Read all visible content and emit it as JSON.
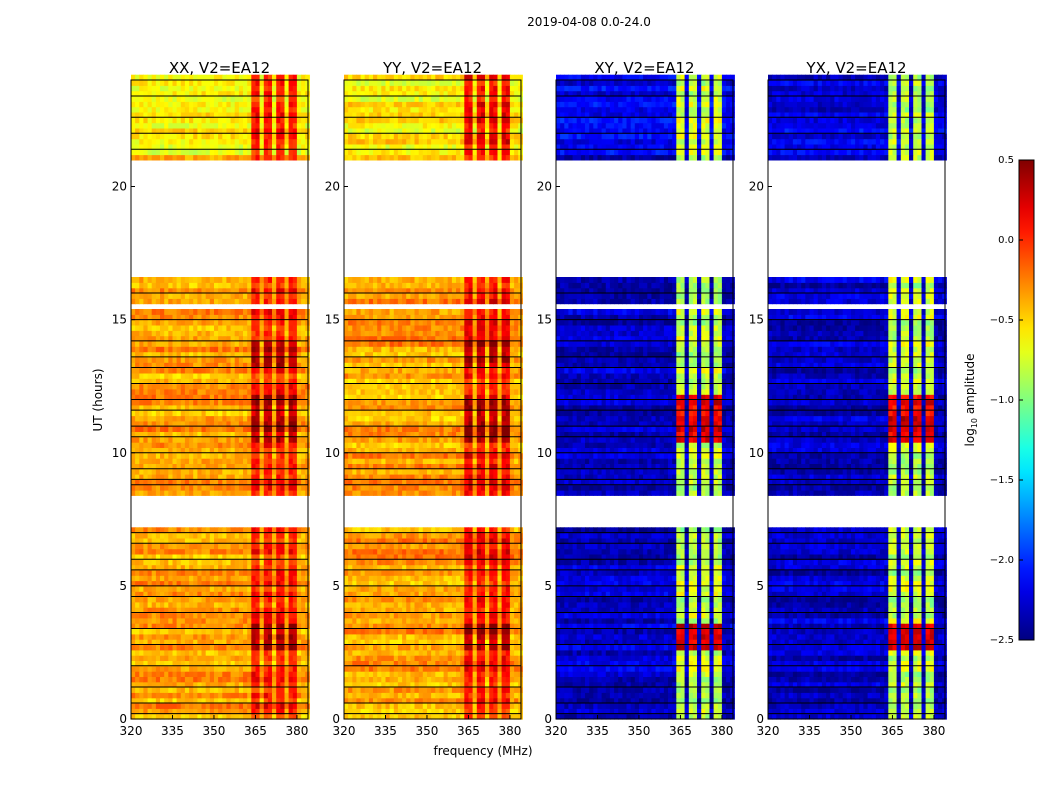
{
  "chart_data": {
    "type": "heatmap",
    "title": "2019-04-08 0.0-24.0",
    "xlabel": "frequency (MHz)",
    "ylabel": "UT (hours)",
    "xlim": [
      320,
      384
    ],
    "ylim": [
      0,
      24
    ],
    "xticks": [
      320,
      335,
      350,
      365,
      380
    ],
    "yticks": [
      0,
      5,
      10,
      15,
      20
    ],
    "colorbar": {
      "label": "log10 amplitude",
      "label_main": "log",
      "label_sub": "10",
      "label_rest": " amplitude",
      "colormap": "jet",
      "range": [
        -2.5,
        0.5
      ],
      "ticks": [
        0.5,
        0.0,
        -0.5,
        -1.0,
        -1.5,
        -2.0,
        -2.5
      ],
      "tick_labels": [
        "0.5",
        "0.0",
        "−0.5",
        "−1.0",
        "−1.5",
        "−2.0",
        "−2.5"
      ]
    },
    "time_gaps_hours": [
      [
        7.3,
        8.5
      ],
      [
        15.45,
        15.6
      ],
      [
        16.5,
        20.95
      ]
    ],
    "flagged_rows_hours": [
      0.3,
      0.6,
      1.2,
      1.9,
      2.3,
      2.9,
      3.4,
      4.1,
      4.6,
      5.1,
      5.6,
      6.1,
      6.6,
      7.0,
      8.9,
      9.4,
      9.9,
      10.5,
      11.0,
      11.5,
      12.0,
      12.6,
      13.1,
      13.6,
      14.1,
      15.0,
      16.0,
      21.3,
      22.0,
      22.6,
      23.3
    ],
    "band_MHz": [
      363,
      381
    ],
    "band_subbands_MHz": [
      [
        363,
        367
      ],
      [
        367.5,
        371.5
      ],
      [
        372,
        376
      ],
      [
        376.5,
        380.5
      ]
    ],
    "panels": [
      {
        "title": "XX, V2=EA12",
        "base_level": -0.35,
        "band_level": 0.05,
        "strong_hours": [
          [
            2.6,
            3.6
          ],
          [
            10.3,
            12.0
          ],
          [
            13.0,
            14.0
          ]
        ],
        "strong_level": 0.35,
        "upper_level": -0.6
      },
      {
        "title": "YY, V2=EA12",
        "base_level": -0.35,
        "band_level": 0.1,
        "strong_hours": [
          [
            2.6,
            3.6
          ],
          [
            10.3,
            12.0
          ],
          [
            13.0,
            14.0
          ]
        ],
        "strong_level": 0.4,
        "upper_level": -0.6
      },
      {
        "title": "XY, V2=EA12",
        "base_level": -2.3,
        "band_level": -0.8,
        "strong_hours": [
          [
            2.6,
            3.6
          ],
          [
            10.3,
            12.0
          ]
        ],
        "strong_level": 0.2,
        "upper_level": -2.2
      },
      {
        "title": "YX, V2=EA12",
        "base_level": -2.3,
        "band_level": -0.8,
        "strong_hours": [
          [
            2.6,
            3.6
          ],
          [
            10.3,
            12.0
          ]
        ],
        "strong_level": 0.2,
        "upper_level": -2.2
      }
    ]
  }
}
